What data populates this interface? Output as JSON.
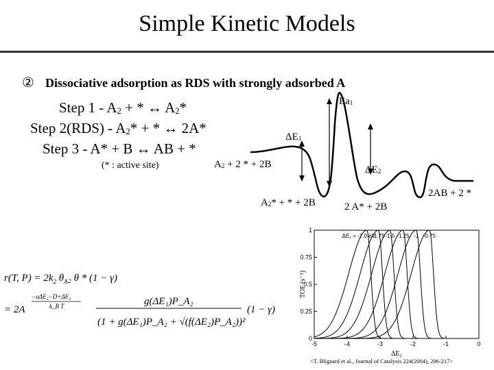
{
  "title": "Simple Kinetic Models",
  "section": {
    "number": "②",
    "subtitle": "Dissociative adsorption as RDS with strongly adsorbed A"
  },
  "steps": [
    {
      "label": "Step 1 - ",
      "parts": [
        "A",
        "2",
        " + * ↔ A",
        "2",
        "*"
      ]
    },
    {
      "label": "Step 2(RDS) - ",
      "parts": [
        "A",
        "2",
        "* + * ↔ 2A*"
      ]
    },
    {
      "label": "Step 3 - ",
      "parts": [
        "A* + B ↔ AB + *"
      ]
    }
  ],
  "step_text": {
    "s1a": "Step 1 - A",
    "s1b": "2",
    "s1c": " + * ↔ A",
    "s1d": "2",
    "s1e": "*",
    "s2a": "Step 2(RDS) - A",
    "s2b": "2",
    "s2c": "* + * ↔ 2A*",
    "s3a": "Step 3 - A* + B ↔ AB + *"
  },
  "note": "(* : active site)",
  "energy_labels": {
    "ea": "Ea",
    "ea_sub": "1",
    "de1": "ΔE",
    "de1_sub": "1",
    "de2": "ΔE",
    "de2_sub": "2",
    "state0a": "A",
    "state0sub": "2",
    "state0b": " + 2 * + 2B",
    "state1a": "A",
    "state1sub": "2",
    "state1b": "* +  * + 2B",
    "state2": "2 A* + 2B",
    "state3": "2AB + 2 *"
  },
  "equation": {
    "line1_lhs": "r(T, P) = 2k",
    "line2_lhs": "= 2A",
    "factor": "(1 − γ)"
  },
  "chart_data": {
    "type": "line",
    "ylabel": "TOF (s⁻¹)",
    "xlabel": "ΔE₂",
    "xlim": [
      -5,
      0
    ],
    "ylim": [
      0,
      1.0
    ],
    "x_ticks": [
      "-5",
      "-4",
      "-3",
      "-2",
      "-1",
      "0"
    ],
    "y_ticks": [
      "0",
      "0.25",
      "0.5",
      "0.75",
      "1"
    ],
    "series": [
      {
        "name": "ΔE₁ = -2.0 eV",
        "peak_x": -3.4
      },
      {
        "name": "-1.75",
        "peak_x": -3.05
      },
      {
        "name": "-1.5",
        "peak_x": -2.7
      },
      {
        "name": "-1.25",
        "peak_x": -2.3
      },
      {
        "name": "-1",
        "peak_x": -1.9
      },
      {
        "name": "-0.75",
        "peak_x": -1.5
      }
    ],
    "annotations": [
      "ΔE₁ = -2.0 eV",
      "-1.75",
      "-1.5",
      "-1.25",
      "-1",
      "-0.75"
    ]
  },
  "citation": "<T. Bligaard et al., Journal of Catalysis 224(2004), 206-217>"
}
